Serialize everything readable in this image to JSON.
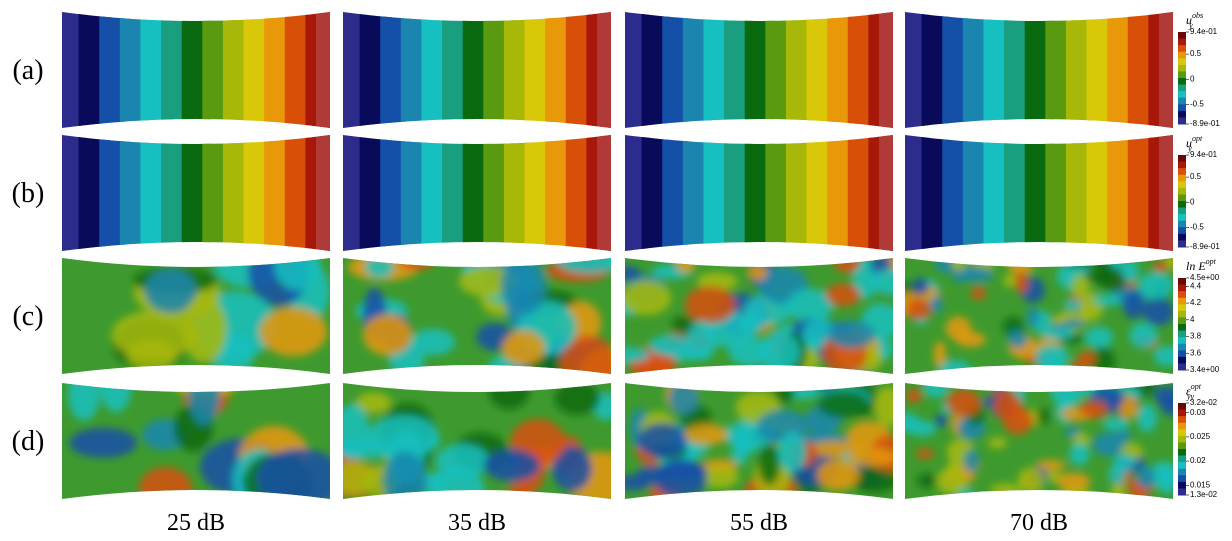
{
  "rows": [
    {
      "label": "(a)",
      "colorbar": {
        "title": {
          "base": "u",
          "sub": "y",
          "sup": "obs"
        },
        "ticks": [
          {
            "value": 0.94,
            "label": "9.4e-01"
          },
          {
            "value": 0.5,
            "label": "0.5"
          },
          {
            "value": 0,
            "label": "0"
          },
          {
            "value": -0.5,
            "label": "-0.5"
          },
          {
            "value": -0.89,
            "label": "-8.9e-01"
          }
        ]
      }
    },
    {
      "label": "(b)",
      "colorbar": {
        "title": {
          "base": "u",
          "sub": "y",
          "sup": "opt"
        },
        "ticks": [
          {
            "value": 0.94,
            "label": "9.4e-01"
          },
          {
            "value": 0.5,
            "label": "0.5"
          },
          {
            "value": 0,
            "label": "0"
          },
          {
            "value": -0.5,
            "label": "-0.5"
          },
          {
            "value": -0.89,
            "label": "-8.9e-01"
          }
        ]
      }
    },
    {
      "label": "(c)",
      "colorbar": {
        "title": {
          "base": "ln E",
          "sup": "opt"
        },
        "ticks": [
          {
            "value": 4.5,
            "label": "4.5e+00"
          },
          {
            "value": 4.4,
            "label": "4.4"
          },
          {
            "value": 4.2,
            "label": "4.2"
          },
          {
            "value": 4,
            "label": "4"
          },
          {
            "value": 3.8,
            "label": "3.8"
          },
          {
            "value": 3.6,
            "label": "3.6"
          },
          {
            "value": 3.4,
            "label": "3.4e+00"
          }
        ]
      }
    },
    {
      "label": "(d)",
      "colorbar": {
        "title": {
          "base": "ε",
          "sub": "yy",
          "sup": "opt"
        },
        "ticks": [
          {
            "value": 0.032,
            "label": "3.2e-02"
          },
          {
            "value": 0.03,
            "label": "0.03"
          },
          {
            "value": 0.025,
            "label": "0.025"
          },
          {
            "value": 0.02,
            "label": "0.02"
          },
          {
            "value": 0.015,
            "label": "0.015"
          },
          {
            "value": 0.013,
            "label": "1.3e-02"
          }
        ]
      }
    }
  ],
  "columns": [
    "25 dB",
    "35 dB",
    "55 dB",
    "70 dB"
  ]
}
